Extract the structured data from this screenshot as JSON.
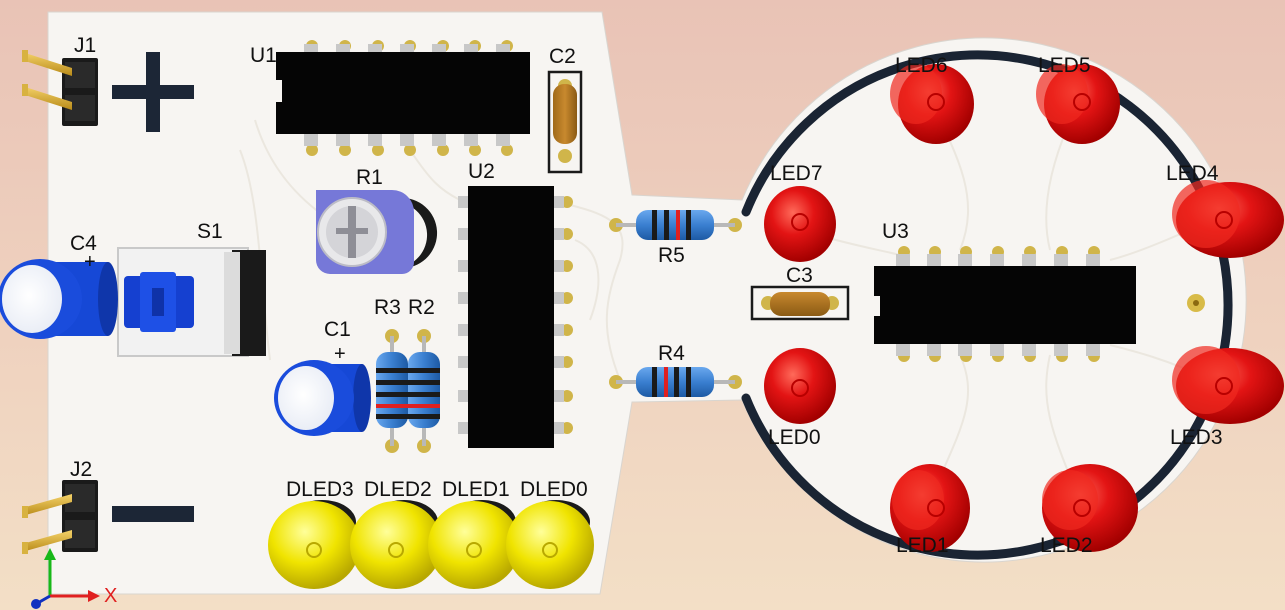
{
  "board": {
    "labels": {
      "J1": "J1",
      "J2": "J2",
      "U1": "U1",
      "U2": "U2",
      "U3": "U3",
      "C1": "C1",
      "C2": "C2",
      "C3": "C3",
      "C4": "C4",
      "S1": "S1",
      "R1": "R1",
      "R2": "R2",
      "R3": "R3",
      "R4": "R4",
      "R5": "R5",
      "C1_polarity": "+",
      "C4_polarity": "+",
      "DLED3": "DLED3",
      "DLED2": "DLED2",
      "DLED1": "DLED1",
      "DLED0": "DLED0",
      "LED0": "LED0",
      "LED1": "LED1",
      "LED2": "LED2",
      "LED3": "LED3",
      "LED4": "LED4",
      "LED5": "LED5",
      "LED6": "LED6",
      "LED7": "LED7"
    },
    "axis": {
      "x_label": "X"
    },
    "colors": {
      "board": "#f7f5f2",
      "ic_body": "#050505",
      "pin": "#c8a640",
      "led_red": "#e01010",
      "led_yellow": "#f2e800",
      "cap_blue": "#1244d8",
      "resistor": "#3f86d6",
      "ring": "#1a2433"
    }
  }
}
